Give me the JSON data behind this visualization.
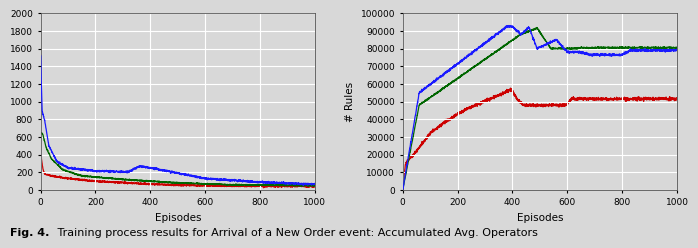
{
  "left_chart": {
    "ylabel": "",
    "xlabel": "Episodes",
    "xlim": [
      0,
      1000
    ],
    "ylim": [
      0,
      2000
    ],
    "yticks": [
      0,
      200,
      400,
      600,
      800,
      1000,
      1200,
      1400,
      1600,
      1800,
      2000
    ],
    "xticks": [
      0,
      200,
      400,
      600,
      800,
      1000
    ]
  },
  "right_chart": {
    "ylabel": "# Rules",
    "xlabel": "Episodes",
    "xlim": [
      0,
      1000
    ],
    "ylim": [
      0,
      100000
    ],
    "yticks": [
      0,
      10000,
      20000,
      30000,
      40000,
      50000,
      60000,
      70000,
      80000,
      90000,
      100000
    ],
    "xticks": [
      0,
      200,
      400,
      600,
      800,
      1000
    ]
  },
  "colors": [
    "#1a1aff",
    "#006600",
    "#cc0000"
  ],
  "background_color": "#d8d8d8",
  "grid_color": "#ffffff",
  "caption_bold": "ig. 4.",
  "caption_text": " Training process results for Arrival of a New Order event: Accumulated Avg. Operators"
}
